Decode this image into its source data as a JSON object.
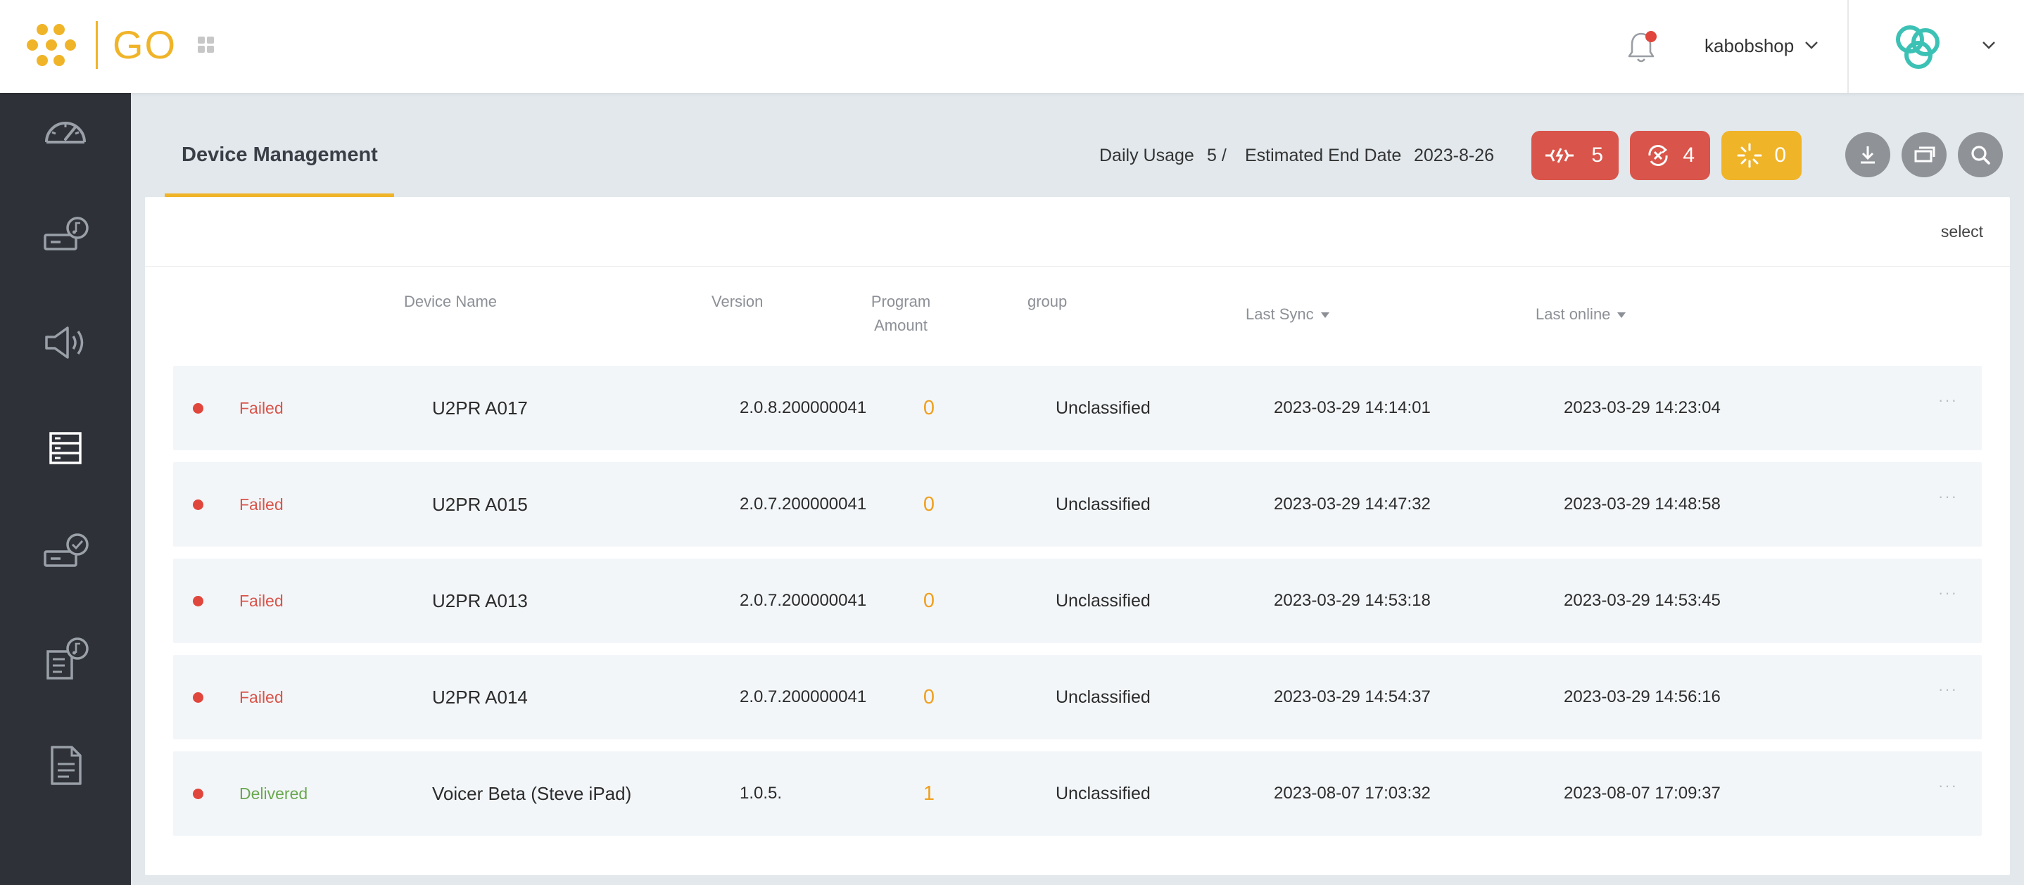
{
  "app": {
    "logo_text": "GO",
    "user": "kabobshop"
  },
  "colors": {
    "accent": "#f0b429",
    "danger": "#d9544a",
    "success": "#6aa84f",
    "sidebar": "#2e3137"
  },
  "sidebar": {
    "items": [
      {
        "icon": "dashboard-gauge-icon"
      },
      {
        "icon": "device-music-icon"
      },
      {
        "icon": "speaker-icon"
      },
      {
        "icon": "server-list-icon",
        "active": true
      },
      {
        "icon": "device-check-icon"
      },
      {
        "icon": "playlist-music-icon"
      },
      {
        "icon": "document-icon"
      }
    ]
  },
  "header": {
    "tab_title": "Device Management",
    "daily_usage_label": "Daily Usage",
    "daily_usage_value": "5 /",
    "end_date_label": "Estimated End Date",
    "end_date_value": "2023-8-26",
    "pills": [
      {
        "icon": "disconnected-icon",
        "count": "5"
      },
      {
        "icon": "sync-error-icon",
        "count": "4"
      },
      {
        "icon": "loading-icon",
        "count": "0"
      }
    ]
  },
  "table": {
    "select_label": "select",
    "columns": {
      "device_name": "Device Name",
      "version": "Version",
      "program_amount_1": "Program",
      "program_amount_2": "Amount",
      "group": "group",
      "last_sync": "Last Sync",
      "last_online": "Last online"
    },
    "rows": [
      {
        "status": "Failed",
        "name": "U2PR A017",
        "version": "2.0.8.200000041",
        "amount": "0",
        "group": "Unclassified",
        "last_sync": "2023-03-29 14:14:01",
        "last_online": "2023-03-29 14:23:04",
        "more": "···"
      },
      {
        "status": "Failed",
        "name": "U2PR A015",
        "version": "2.0.7.200000041",
        "amount": "0",
        "group": "Unclassified",
        "last_sync": "2023-03-29 14:47:32",
        "last_online": "2023-03-29 14:48:58",
        "more": "···"
      },
      {
        "status": "Failed",
        "name": "U2PR A013",
        "version": "2.0.7.200000041",
        "amount": "0",
        "group": "Unclassified",
        "last_sync": "2023-03-29 14:53:18",
        "last_online": "2023-03-29 14:53:45",
        "more": "···"
      },
      {
        "status": "Failed",
        "name": "U2PR A014",
        "version": "2.0.7.200000041",
        "amount": "0",
        "group": "Unclassified",
        "last_sync": "2023-03-29 14:54:37",
        "last_online": "2023-03-29 14:56:16",
        "more": "···"
      },
      {
        "status": "Delivered",
        "name": "Voicer Beta (Steve iPad)",
        "version": "1.0.5.",
        "amount": "1",
        "group": "Unclassified",
        "last_sync": "2023-08-07 17:03:32",
        "last_online": "2023-08-07 17:09:37",
        "more": "···"
      }
    ]
  }
}
